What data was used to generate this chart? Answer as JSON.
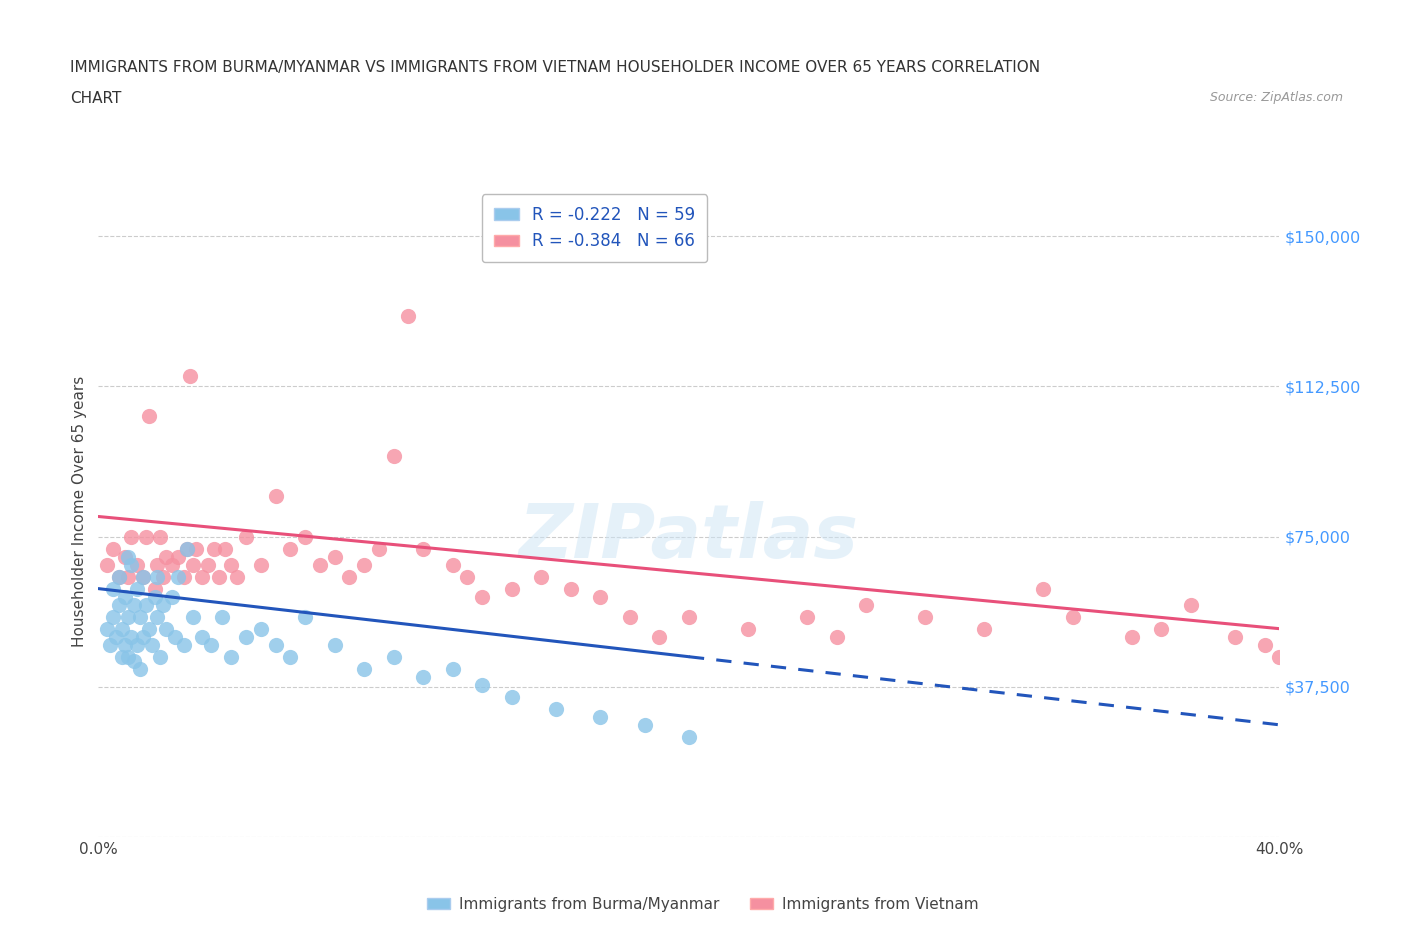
{
  "title_line1": "IMMIGRANTS FROM BURMA/MYANMAR VS IMMIGRANTS FROM VIETNAM HOUSEHOLDER INCOME OVER 65 YEARS CORRELATION",
  "title_line2": "CHART",
  "source": "Source: ZipAtlas.com",
  "ylabel": "Householder Income Over 65 years",
  "xlim": [
    0.0,
    40.0
  ],
  "ylim": [
    0,
    162500
  ],
  "yticks": [
    0,
    37500,
    75000,
    112500,
    150000
  ],
  "ytick_labels": [
    "",
    "$37,500",
    "$75,000",
    "$112,500",
    "$150,000"
  ],
  "xticks": [
    0.0,
    5.0,
    10.0,
    15.0,
    20.0,
    25.0,
    30.0,
    35.0,
    40.0
  ],
  "xtick_labels": [
    "0.0%",
    "",
    "",
    "",
    "",
    "",
    "",
    "",
    "40.0%"
  ],
  "color_burma": "#89c4e8",
  "color_vietnam": "#f590a0",
  "color_burma_line": "#2255bb",
  "color_vietnam_line": "#e8507a",
  "R_burma": -0.222,
  "N_burma": 59,
  "R_vietnam": -0.384,
  "N_vietnam": 66,
  "legend_label_burma": "Immigrants from Burma/Myanmar",
  "legend_label_vietnam": "Immigrants from Vietnam",
  "watermark": "ZIPatlas",
  "burma_x": [
    0.3,
    0.4,
    0.5,
    0.5,
    0.6,
    0.7,
    0.7,
    0.8,
    0.8,
    0.9,
    0.9,
    1.0,
    1.0,
    1.0,
    1.1,
    1.1,
    1.2,
    1.2,
    1.3,
    1.3,
    1.4,
    1.4,
    1.5,
    1.5,
    1.6,
    1.7,
    1.8,
    1.9,
    2.0,
    2.0,
    2.1,
    2.2,
    2.3,
    2.5,
    2.6,
    2.7,
    2.9,
    3.0,
    3.2,
    3.5,
    3.8,
    4.2,
    4.5,
    5.0,
    5.5,
    6.0,
    6.5,
    7.0,
    8.0,
    9.0,
    10.0,
    11.0,
    12.0,
    13.0,
    14.0,
    15.5,
    17.0,
    18.5,
    20.0
  ],
  "burma_y": [
    52000,
    48000,
    62000,
    55000,
    50000,
    58000,
    65000,
    45000,
    52000,
    60000,
    48000,
    70000,
    55000,
    45000,
    68000,
    50000,
    58000,
    44000,
    62000,
    48000,
    55000,
    42000,
    65000,
    50000,
    58000,
    52000,
    48000,
    60000,
    55000,
    65000,
    45000,
    58000,
    52000,
    60000,
    50000,
    65000,
    48000,
    72000,
    55000,
    50000,
    48000,
    55000,
    45000,
    50000,
    52000,
    48000,
    45000,
    55000,
    48000,
    42000,
    45000,
    40000,
    42000,
    38000,
    35000,
    32000,
    30000,
    28000,
    25000
  ],
  "vietnam_x": [
    0.3,
    0.5,
    0.7,
    0.9,
    1.0,
    1.1,
    1.3,
    1.5,
    1.6,
    1.7,
    1.9,
    2.0,
    2.1,
    2.2,
    2.3,
    2.5,
    2.7,
    2.9,
    3.0,
    3.1,
    3.2,
    3.3,
    3.5,
    3.7,
    3.9,
    4.1,
    4.3,
    4.5,
    4.7,
    5.0,
    5.5,
    6.0,
    6.5,
    7.0,
    7.5,
    8.0,
    8.5,
    9.0,
    9.5,
    10.0,
    10.5,
    11.0,
    12.0,
    12.5,
    13.0,
    14.0,
    15.0,
    16.0,
    17.0,
    18.0,
    19.0,
    20.0,
    22.0,
    24.0,
    25.0,
    26.0,
    28.0,
    30.0,
    32.0,
    33.0,
    35.0,
    36.0,
    37.0,
    38.5,
    39.5,
    40.0
  ],
  "vietnam_y": [
    68000,
    72000,
    65000,
    70000,
    65000,
    75000,
    68000,
    65000,
    75000,
    105000,
    62000,
    68000,
    75000,
    65000,
    70000,
    68000,
    70000,
    65000,
    72000,
    115000,
    68000,
    72000,
    65000,
    68000,
    72000,
    65000,
    72000,
    68000,
    65000,
    75000,
    68000,
    85000,
    72000,
    75000,
    68000,
    70000,
    65000,
    68000,
    72000,
    95000,
    130000,
    72000,
    68000,
    65000,
    60000,
    62000,
    65000,
    62000,
    60000,
    55000,
    50000,
    55000,
    52000,
    55000,
    50000,
    58000,
    55000,
    52000,
    62000,
    55000,
    50000,
    52000,
    58000,
    50000,
    48000,
    45000
  ]
}
